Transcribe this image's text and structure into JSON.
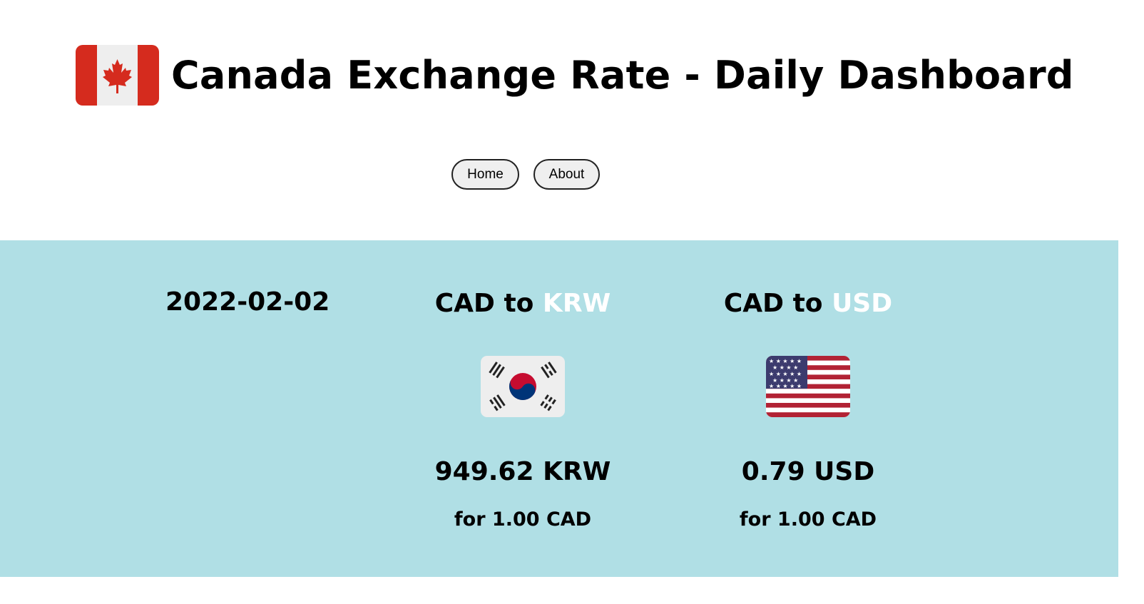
{
  "header": {
    "title": "Canada Exchange Rate - Daily Dashboard",
    "logo_icon": "canada-flag-icon"
  },
  "nav": {
    "home_label": "Home",
    "about_label": "About"
  },
  "colors": {
    "panel_bg": "#b0dfe5",
    "currency_code_accent": "#ffffff",
    "canada_red": "#d52b1e"
  },
  "rates": {
    "date": "2022-02-02",
    "cards": [
      {
        "prefix": "CAD to ",
        "code": "KRW",
        "flag_icon": "south-korea-flag-icon",
        "amount": "949.62 KRW",
        "basis": "for 1.00 CAD"
      },
      {
        "prefix": "CAD to ",
        "code": "USD",
        "flag_icon": "usa-flag-icon",
        "amount": "0.79 USD",
        "basis": "for 1.00 CAD"
      }
    ]
  }
}
